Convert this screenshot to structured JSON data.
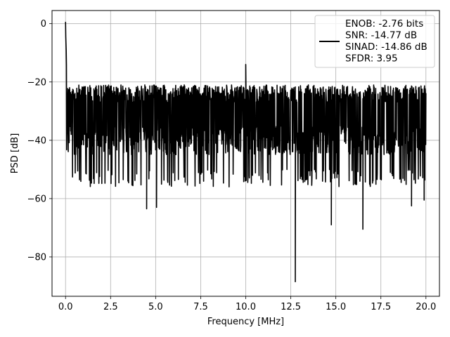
{
  "chart_data": {
    "type": "line",
    "xlabel": "Frequency [MHz]",
    "ylabel": "PSD [dB]",
    "xlim": [
      -0.75,
      20.75
    ],
    "ylim": [
      -93.5,
      4.5
    ],
    "x_ticks": [
      0.0,
      2.5,
      5.0,
      7.5,
      10.0,
      12.5,
      15.0,
      17.5,
      20.0
    ],
    "x_tick_labels": [
      "0.0",
      "2.5",
      "5.0",
      "7.5",
      "10.0",
      "12.5",
      "15.0",
      "17.5",
      "20.0"
    ],
    "y_ticks": [
      0,
      -20,
      -40,
      -60,
      -80
    ],
    "y_tick_labels": [
      "0",
      "−20",
      "−40",
      "−60",
      "−80"
    ],
    "grid": true,
    "legend_position": "top-right",
    "series": [
      {
        "color": "#000000",
        "x_range": [
          0.0,
          20.0
        ],
        "noise_floor_band_db": [
          -50,
          -20
        ],
        "dc_peak": {
          "x": 0.0,
          "y": 0.0
        },
        "spurs": [
          {
            "x": 10.0,
            "y": -14
          }
        ],
        "notable_dips": [
          {
            "x": 4.5,
            "y": -63.5
          },
          {
            "x": 5.05,
            "y": -63
          },
          {
            "x": 12.75,
            "y": -88.5
          },
          {
            "x": 14.75,
            "y": -69
          },
          {
            "x": 16.5,
            "y": -70.5
          },
          {
            "x": 19.2,
            "y": -62.5
          },
          {
            "x": 19.9,
            "y": -60.5
          }
        ]
      }
    ],
    "legend": {
      "lines": [
        "ENOB: -2.76 bits",
        "SNR: -14.77 dB",
        "SINAD: -14.86 dB",
        "SFDR: 3.95"
      ]
    }
  }
}
